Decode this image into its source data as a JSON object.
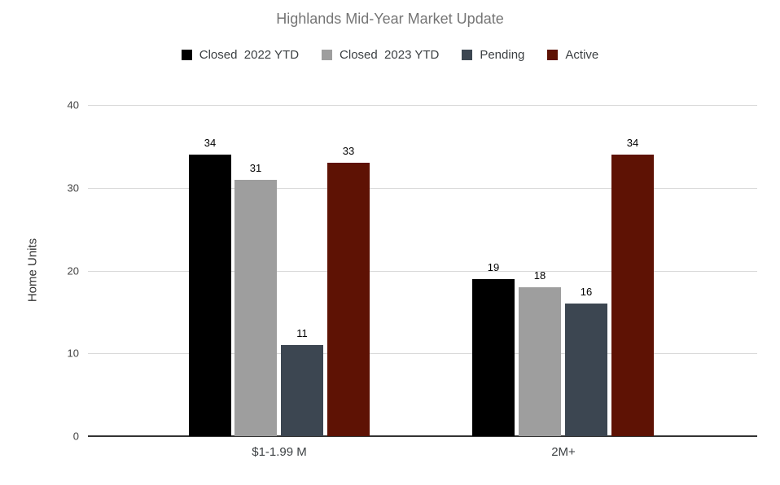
{
  "chart": {
    "title": "Highlands Mid-Year Market Update",
    "ylabel": "Home Units"
  },
  "chart_data": {
    "type": "bar",
    "title": "Highlands Mid-Year Market Update",
    "xlabel": "",
    "ylabel": "Home Units",
    "categories": [
      "$1-1.99 M",
      "2M+"
    ],
    "series": [
      {
        "name": "Closed  2022 YTD",
        "color": "#000000",
        "values": [
          34,
          19
        ]
      },
      {
        "name": "Closed  2023 YTD",
        "color": "#9e9e9e",
        "values": [
          31,
          18
        ]
      },
      {
        "name": "Pending",
        "color": "#3c4651",
        "values": [
          11,
          16
        ]
      },
      {
        "name": "Active",
        "color": "#5e1204",
        "values": [
          33,
          34
        ]
      }
    ],
    "ylim": [
      0,
      40
    ],
    "yticks": [
      0,
      10,
      20,
      30,
      40
    ],
    "grid": true,
    "legend_position": "top",
    "background": "#ffffff"
  }
}
